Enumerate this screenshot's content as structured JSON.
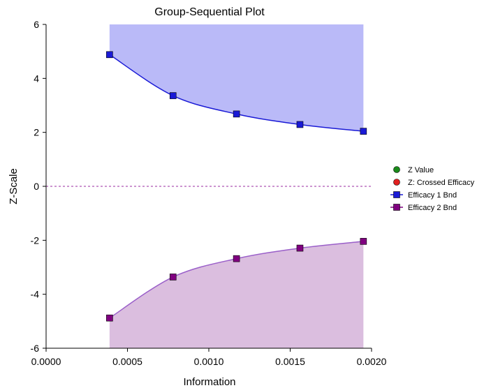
{
  "chart_data": {
    "type": "line",
    "title": "Group-Sequential Plot",
    "xlabel": "Information",
    "ylabel": "Z-Scale",
    "xlim": [
      0.0,
      0.002
    ],
    "ylim": [
      -6,
      6
    ],
    "x_ticks": [
      "0.0000",
      "0.0005",
      "0.0010",
      "0.0015",
      "0.0020"
    ],
    "y_ticks": [
      "6",
      "4",
      "2",
      "0",
      "-2",
      "-4",
      "-6"
    ],
    "x_tick_values": [
      0.0,
      0.0005,
      0.001,
      0.0015,
      0.002
    ],
    "y_tick_values": [
      6,
      4,
      2,
      0,
      -2,
      -4,
      -6
    ],
    "reference_line_y": 0,
    "grid": false,
    "legend_position": "right",
    "legend": [
      {
        "label": "Z Value",
        "marker": "circle",
        "color": "#1a8a1a"
      },
      {
        "label": "Z: Crossed Efficacy",
        "marker": "circle",
        "color": "#e02020"
      },
      {
        "label": "Efficacy 1 Bnd",
        "marker": "square",
        "color": "#1a1ad6"
      },
      {
        "label": "Efficacy 2 Bnd",
        "marker": "square",
        "color": "#800080"
      }
    ],
    "series": [
      {
        "name": "Efficacy 1 Bnd",
        "color": "#1a1ad6",
        "fill_color": "#babaf8",
        "fill_to": "top",
        "x": [
          0.00039,
          0.00078,
          0.00117,
          0.00156,
          0.00195
        ],
        "y": [
          4.88,
          3.36,
          2.68,
          2.29,
          2.04
        ]
      },
      {
        "name": "Efficacy 2 Bnd",
        "color": "#9a5fc9",
        "marker_color": "#800080",
        "fill_color": "#dbbedf",
        "fill_to": "bottom",
        "x": [
          0.00039,
          0.00078,
          0.00117,
          0.00156,
          0.00195
        ],
        "y": [
          -4.88,
          -3.36,
          -2.68,
          -2.29,
          -2.04
        ]
      }
    ]
  }
}
